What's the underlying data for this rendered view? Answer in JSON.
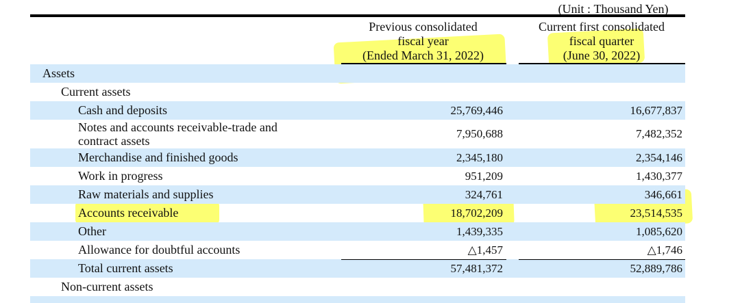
{
  "unit_label": "(Unit : Thousand Yen)",
  "columns": {
    "previous": [
      "Previous consolidated",
      "fiscal year",
      "(Ended March 31, 2022)"
    ],
    "current": [
      "Current first consolidated",
      "fiscal quarter",
      "(June 30, 2022)"
    ]
  },
  "rows": [
    {
      "label": "Assets",
      "prev": "",
      "cur": ""
    },
    {
      "label": "Current assets",
      "prev": "",
      "cur": ""
    },
    {
      "label": "Cash and deposits",
      "prev": "25,769,446",
      "cur": "16,677,837"
    },
    {
      "label_lines": [
        "Notes and accounts receivable-trade and",
        "contract assets"
      ],
      "prev": "7,950,688",
      "cur": "7,482,352"
    },
    {
      "label": "Merchandise and finished goods",
      "prev": "2,345,180",
      "cur": "2,354,146"
    },
    {
      "label": "Work in progress",
      "prev": "951,209",
      "cur": "1,430,377"
    },
    {
      "label": "Raw materials and supplies",
      "prev": "324,761",
      "cur": "346,661"
    },
    {
      "label": "Accounts receivable",
      "prev": "18,702,209",
      "cur": "23,514,535"
    },
    {
      "label": "Other",
      "prev": "1,439,335",
      "cur": "1,085,620"
    },
    {
      "label": "Allowance for doubtful accounts",
      "prev": "△1,457",
      "cur": "△1,746"
    },
    {
      "label": "Total current assets",
      "prev": "57,481,372",
      "cur": "52,889,786"
    },
    {
      "label": "Non-current assets",
      "prev": "",
      "cur": ""
    }
  ],
  "highlight_color": "#fbff00"
}
